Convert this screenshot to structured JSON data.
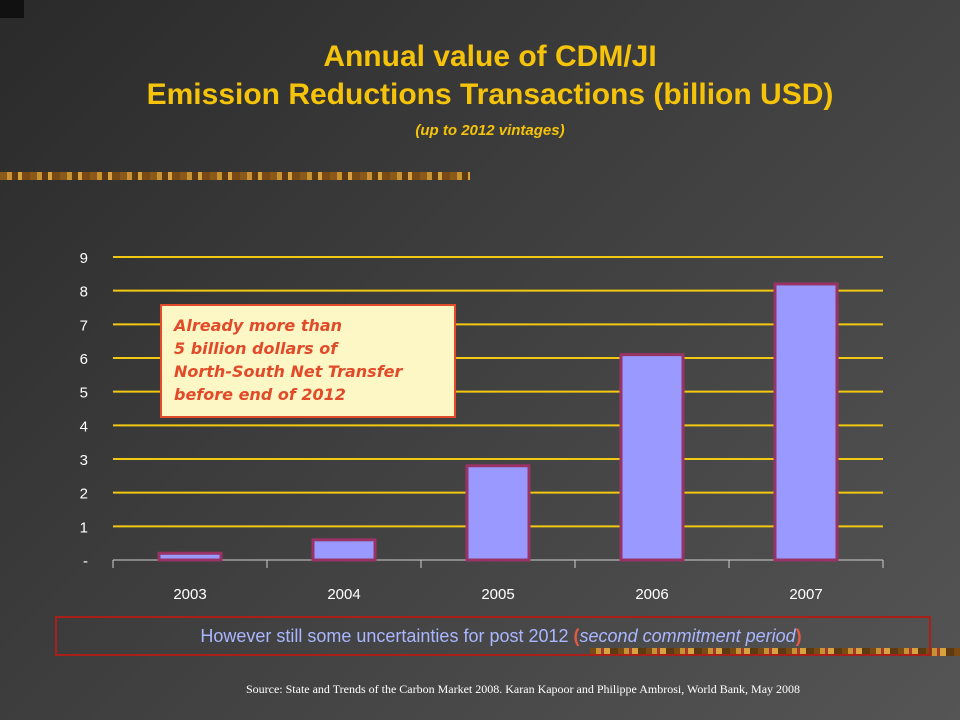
{
  "title": {
    "line1": "Annual value of CDM/JI",
    "line2": "Emission Reductions Transactions (billion USD)",
    "line3": "(up to 2012 vintages)"
  },
  "callout": {
    "lines": [
      "Already more than",
      "5 billion dollars of",
      "North-South Net Transfer",
      "before end of 2012"
    ]
  },
  "note": {
    "text_before": "However still some uncertainties for post 2012 ",
    "paren_open": "(",
    "italic_text": "second commitment period",
    "paren_close": ")"
  },
  "source": "Source: State and Trends of the Carbon Market 2008. Karan Kapoor and Philippe Ambrosi, World Bank, May 2008",
  "colors": {
    "title": "#f5c40a",
    "bar_fill": "#9999ff",
    "bar_stroke": "#993366",
    "grid": "#f2c811",
    "axis_text": "#ffffff",
    "callout_text": "#e24b2a",
    "callout_bg": "#fdf7c6",
    "note_text": "#aab6ff"
  },
  "chart_data": {
    "type": "bar",
    "categories": [
      "2003",
      "2004",
      "2005",
      "2006",
      "2007"
    ],
    "values": [
      0.2,
      0.6,
      2.8,
      6.1,
      8.2
    ],
    "ylim": [
      0,
      9
    ],
    "yticks": [
      {
        "value": 0,
        "label": "-"
      },
      {
        "value": 1,
        "label": "1"
      },
      {
        "value": 2,
        "label": "2"
      },
      {
        "value": 3,
        "label": "3"
      },
      {
        "value": 4,
        "label": "4"
      },
      {
        "value": 5,
        "label": "5"
      },
      {
        "value": 6,
        "label": "6"
      },
      {
        "value": 7,
        "label": "7"
      },
      {
        "value": 8,
        "label": "8"
      },
      {
        "value": 9,
        "label": "9"
      }
    ],
    "grid": true,
    "legend": "none"
  }
}
